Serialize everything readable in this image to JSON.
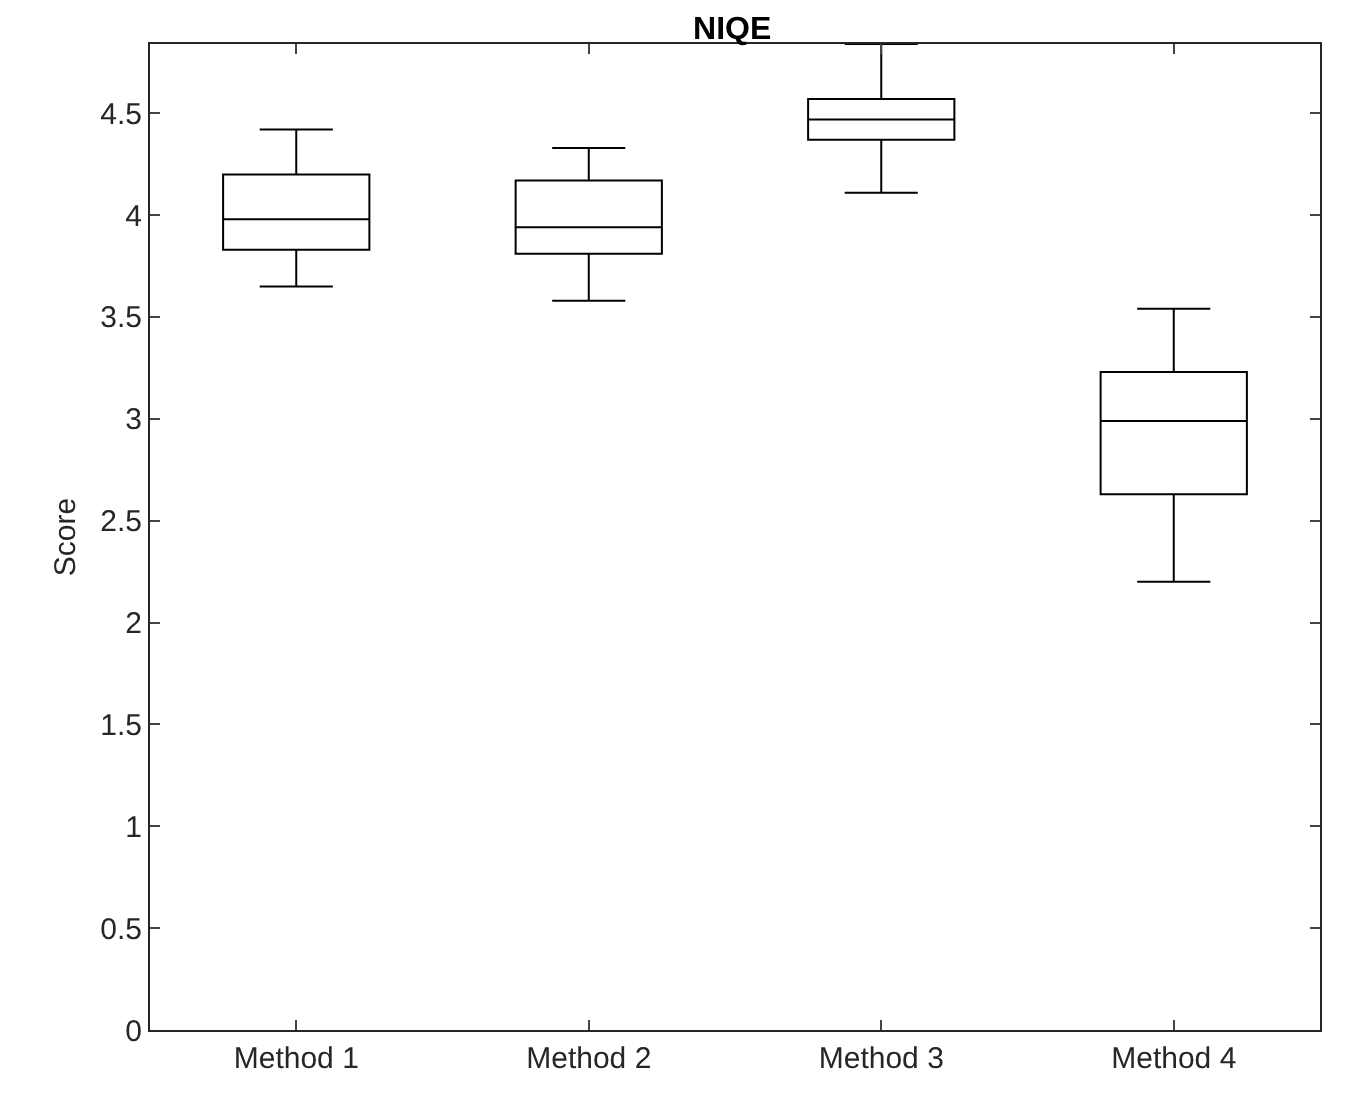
{
  "chart_data": {
    "type": "box",
    "title": "NIQE",
    "ylabel": "Score",
    "categories": [
      "Method 1",
      "Method 2",
      "Method 3",
      "Method 4"
    ],
    "boxes": [
      {
        "low": 3.65,
        "q1": 3.83,
        "median": 3.98,
        "q3": 4.2,
        "high": 4.42
      },
      {
        "low": 3.58,
        "q1": 3.81,
        "median": 3.94,
        "q3": 4.17,
        "high": 4.33
      },
      {
        "low": 4.11,
        "q1": 4.37,
        "median": 4.47,
        "q3": 4.57,
        "high": 4.84
      },
      {
        "low": 2.2,
        "q1": 2.63,
        "median": 2.99,
        "q3": 3.23,
        "high": 3.54
      }
    ],
    "color": "#000000",
    "ylim": [
      0,
      4.84
    ],
    "yticks": [
      0,
      0.5,
      1,
      1.5,
      2,
      2.5,
      3,
      3.5,
      4,
      4.5
    ],
    "grid": false
  }
}
